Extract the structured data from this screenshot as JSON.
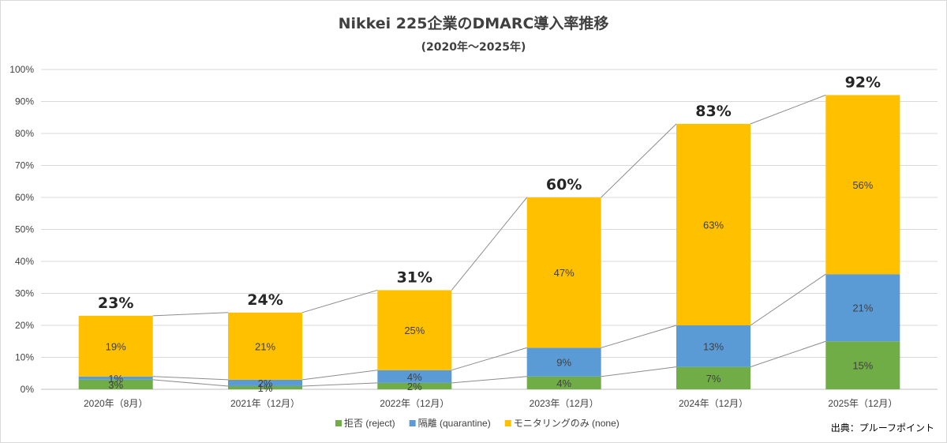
{
  "chart_data": {
    "type": "bar",
    "stacked": true,
    "title": "Nikkei 225企業のDMARC導入率推移",
    "subtitle": "(2020年～2025年)",
    "categories": [
      "2020年（8月）",
      "2021年（12月）",
      "2022年（12月）",
      "2023年（12月）",
      "2024年（12月）",
      "2025年（12月）"
    ],
    "series": [
      {
        "name": "拒否 (reject)",
        "color": "#70AD47",
        "values": [
          3,
          1,
          2,
          4,
          7,
          15
        ],
        "labels": [
          "3%",
          "1%",
          "2%",
          "4%",
          "7%",
          "15%"
        ]
      },
      {
        "name": "隔離 (quarantine)",
        "color": "#5B9BD5",
        "values": [
          1,
          2,
          4,
          9,
          13,
          21
        ],
        "labels": [
          "1%",
          "2%",
          "4%",
          "9%",
          "13%",
          "21%"
        ]
      },
      {
        "name": "モニタリングのみ (none)",
        "color": "#FFC000",
        "values": [
          19,
          21,
          25,
          47,
          63,
          56
        ],
        "labels": [
          "19%",
          "21%",
          "25%",
          "47%",
          "63%",
          "56%"
        ]
      }
    ],
    "totals": [
      23,
      24,
      31,
      60,
      83,
      92
    ],
    "total_labels": [
      "23%",
      "24%",
      "31%",
      "60%",
      "83%",
      "92%"
    ],
    "ylim": [
      0,
      100
    ],
    "yticks": [
      0,
      10,
      20,
      30,
      40,
      50,
      60,
      70,
      80,
      90,
      100
    ],
    "ytick_labels": [
      "0%",
      "10%",
      "20%",
      "30%",
      "40%",
      "50%",
      "60%",
      "70%",
      "80%",
      "90%",
      "100%"
    ],
    "xlabel": "",
    "ylabel": "",
    "grid": true,
    "legend_position": "bottom-center",
    "source": "出典：プルーフポイント"
  }
}
